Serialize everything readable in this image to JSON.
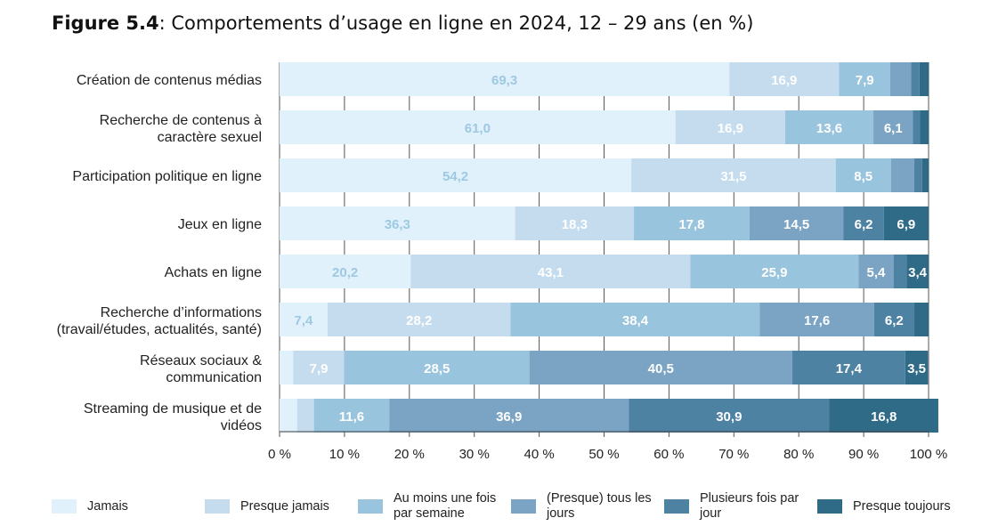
{
  "title": {
    "prefix": "Figure 5.4",
    "text": ": Comportements d’usage en ligne en 2024, 12 – 29 ans (en %)"
  },
  "chart_data": {
    "type": "bar",
    "orientation": "horizontal",
    "stacked": true,
    "title": "Figure 5.4: Comportements d’usage en ligne en 2024, 12 – 29 ans (en %)",
    "xlim": [
      0,
      100
    ],
    "grid": true,
    "legend_position": "bottom",
    "categories": [
      [
        "Création de contenus médias"
      ],
      [
        "Recherche de contenus à",
        "caractère sexuel"
      ],
      [
        "Participation politique en ligne"
      ],
      [
        "Jeux en ligne"
      ],
      [
        "Achats en ligne"
      ],
      [
        "Recherche d’informations",
        "(travail/études, actualités, santé)"
      ],
      [
        "Réseaux sociaux &",
        "communication"
      ],
      [
        "Streaming de musique et de",
        "vidéos"
      ]
    ],
    "x_ticks": [
      "0 %",
      "10 %",
      "20 %",
      "30 %",
      "40 %",
      "50 %",
      "60 %",
      "70 %",
      "80 %",
      "90 %",
      "100 %"
    ],
    "series": [
      {
        "name": "Jamais",
        "color": "#e0f1fc",
        "label_color": "#9ec9e0",
        "values": [
          69.3,
          61.0,
          54.2,
          36.3,
          20.2,
          7.4,
          2.1,
          2.7
        ]
      },
      {
        "name": "Presque jamais",
        "color": "#c4dcee",
        "label_color": "#ffffff",
        "values": [
          16.9,
          16.9,
          31.5,
          18.3,
          43.1,
          28.2,
          7.9,
          2.6
        ]
      },
      {
        "name": "Au moins une fois par semaine",
        "color": "#99c4de",
        "label_color": "#ffffff",
        "values": [
          7.9,
          13.6,
          8.5,
          17.8,
          25.9,
          38.4,
          28.5,
          11.6
        ]
      },
      {
        "name": "(Presque) tous les jours",
        "color": "#7aa3c4",
        "label_color": "#ffffff",
        "values": [
          3.2,
          6.1,
          3.6,
          14.5,
          5.4,
          17.6,
          40.5,
          36.9
        ]
      },
      {
        "name": "Plusieurs fois par jour",
        "color": "#4e82a3",
        "label_color": "#ffffff",
        "values": [
          1.3,
          1.1,
          1.2,
          6.2,
          2.0,
          6.2,
          17.4,
          30.9
        ]
      },
      {
        "name": "Presque toujours",
        "color": "#2f6a87",
        "label_color": "#ffffff",
        "values": [
          1.4,
          1.3,
          1.0,
          6.9,
          3.4,
          2.2,
          3.5,
          16.8
        ]
      }
    ],
    "data_labels": [
      [
        "69,3",
        "16,9",
        "7,9",
        "",
        "",
        ""
      ],
      [
        "61,0",
        "16,9",
        "13,6",
        "6,1",
        "",
        ""
      ],
      [
        "54,2",
        "31,5",
        "8,5",
        "",
        "",
        ""
      ],
      [
        "36,3",
        "18,3",
        "17,8",
        "14,5",
        "6,2",
        "6,9"
      ],
      [
        "20,2",
        "43,1",
        "25,9",
        "5,4",
        "",
        "3,4"
      ],
      [
        "7,4",
        "28,2",
        "38,4",
        "17,6",
        "6,2",
        ""
      ],
      [
        "",
        "7,9",
        "28,5",
        "40,5",
        "17,4",
        "3,5"
      ],
      [
        "",
        "",
        "11,6",
        "36,9",
        "30,9",
        "16,8"
      ]
    ]
  },
  "legend": [
    {
      "lines": [
        "Jamais"
      ],
      "color": "#e0f1fc"
    },
    {
      "lines": [
        "Presque jamais"
      ],
      "color": "#c4dcee"
    },
    {
      "lines": [
        "Au moins une fois",
        "par semaine"
      ],
      "color": "#99c4de"
    },
    {
      "lines": [
        "(Presque) tous les",
        "jours"
      ],
      "color": "#7aa3c4"
    },
    {
      "lines": [
        "Plusieurs fois par",
        "jour"
      ],
      "color": "#4e82a3"
    },
    {
      "lines": [
        "Presque toujours"
      ],
      "color": "#2f6a87"
    }
  ]
}
